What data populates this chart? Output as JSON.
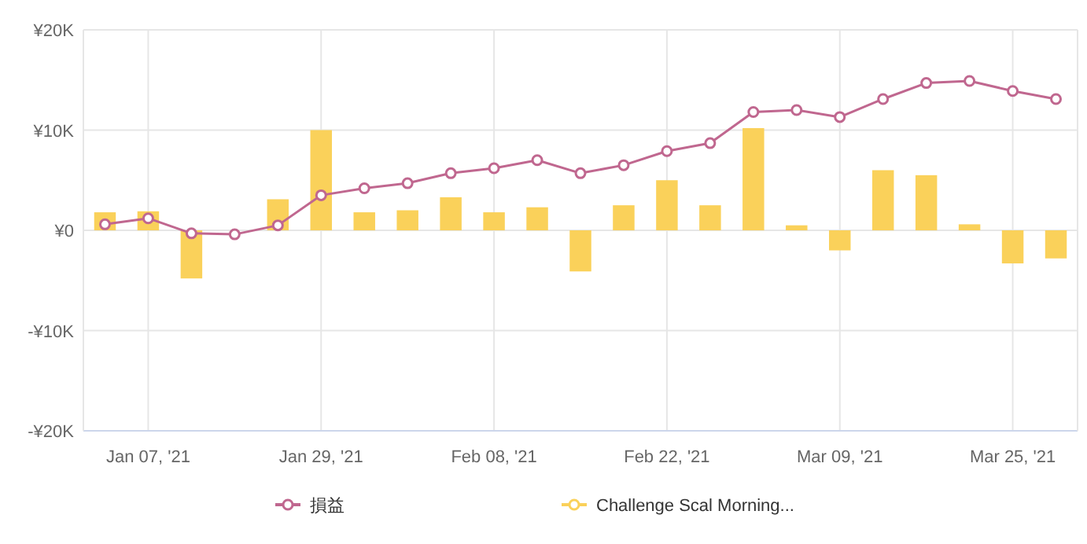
{
  "chart_data": {
    "type": "bar",
    "categories": [
      null,
      "Jan 07, '21",
      null,
      null,
      null,
      "Jan 29, '21",
      null,
      null,
      null,
      "Feb 08, '21",
      null,
      null,
      null,
      "Feb 22, '21",
      null,
      null,
      null,
      "Mar 09, '21",
      null,
      null,
      null,
      "Mar 25, '21",
      null
    ],
    "ylim": [
      -20000,
      20000
    ],
    "yticks": [
      {
        "value": -20000,
        "label": "-¥20K"
      },
      {
        "value": -10000,
        "label": "-¥10K"
      },
      {
        "value": 0,
        "label": "¥0"
      },
      {
        "value": 10000,
        "label": "¥10K"
      },
      {
        "value": 20000,
        "label": "¥20K"
      }
    ],
    "grid": true,
    "legend": "bottom",
    "series": [
      {
        "name": "Challenge Scal Morning...",
        "color": "#fad15a",
        "values": [
          1800,
          1900,
          -4800,
          0,
          3100,
          10000,
          1800,
          2000,
          3300,
          1800,
          2300,
          -4100,
          2500,
          5000,
          2500,
          10200,
          500,
          -2000,
          6000,
          5500,
          600,
          -3300,
          -2800
        ]
      },
      {
        "name": "損益",
        "type": "line",
        "color": "#c0678f",
        "marker": "circle",
        "values": [
          600,
          1200,
          -300,
          -400,
          500,
          3500,
          4200,
          4700,
          5700,
          6200,
          7000,
          5700,
          6500,
          7900,
          8700,
          11800,
          12000,
          11300,
          13100,
          14700,
          14900,
          13900,
          13100
        ]
      }
    ]
  }
}
